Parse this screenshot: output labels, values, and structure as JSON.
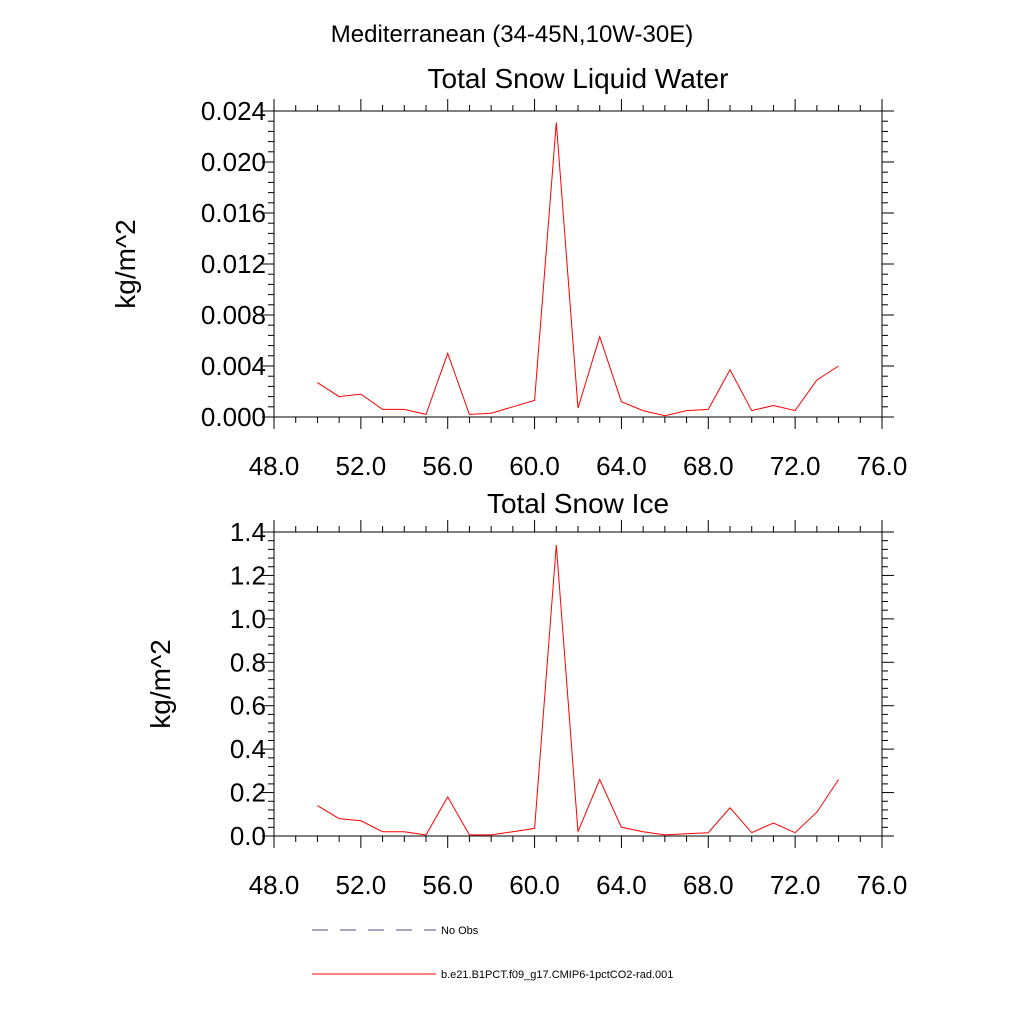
{
  "page": {
    "main_title": "Mediterranean (34-45N,10W-30E)"
  },
  "legend": {
    "items": [
      {
        "label": "No Obs",
        "color": "#4d4d80",
        "style": "dashed"
      },
      {
        "label": "b.e21.B1PCT.f09_g17.CMIP6-1pctCO2-rad.001",
        "color": "#ff0000",
        "style": "solid"
      }
    ]
  },
  "chart_data": [
    {
      "type": "line",
      "title": "Total Snow Liquid Water",
      "xlabel": "",
      "ylabel": "kg/m^2",
      "xlim": [
        48,
        76
      ],
      "ylim": [
        0,
        0.024
      ],
      "x_ticks": [
        48,
        52,
        56,
        60,
        64,
        68,
        72,
        76
      ],
      "x_tick_labels": [
        "48.0",
        "52.0",
        "56.0",
        "60.0",
        "64.0",
        "68.0",
        "72.0",
        "76.0"
      ],
      "y_ticks": [
        0,
        0.004,
        0.008,
        0.012,
        0.016,
        0.02,
        0.024
      ],
      "y_tick_labels": [
        "0.000",
        "0.004",
        "0.008",
        "0.012",
        "0.016",
        "0.020",
        "0.024"
      ],
      "grid": false,
      "series": [
        {
          "name": "b.e21.B1PCT.f09_g17.CMIP6-1pctCO2-rad.001",
          "color": "#ff0000",
          "x": [
            50,
            51,
            52,
            53,
            54,
            55,
            56,
            57,
            58,
            59,
            60,
            61,
            62,
            63,
            64,
            65,
            66,
            67,
            68,
            69,
            70,
            71,
            72,
            73,
            74
          ],
          "y": [
            0.0027,
            0.0016,
            0.0018,
            0.0006,
            0.0006,
            0.0002,
            0.005,
            0.0002,
            0.0003,
            0.0008,
            0.0013,
            0.0231,
            0.0007,
            0.0063,
            0.0012,
            0.0005,
            0.0001,
            0.0005,
            0.0006,
            0.0037,
            0.0005,
            0.0009,
            0.0005,
            0.0029,
            0.004
          ]
        }
      ]
    },
    {
      "type": "line",
      "title": "Total Snow Ice",
      "xlabel": "",
      "ylabel": "kg/m^2",
      "xlim": [
        48,
        76
      ],
      "ylim": [
        0,
        1.4
      ],
      "x_ticks": [
        48,
        52,
        56,
        60,
        64,
        68,
        72,
        76
      ],
      "x_tick_labels": [
        "48.0",
        "52.0",
        "56.0",
        "60.0",
        "64.0",
        "68.0",
        "72.0",
        "76.0"
      ],
      "y_ticks": [
        0,
        0.2,
        0.4,
        0.6,
        0.8,
        1.0,
        1.2,
        1.4
      ],
      "y_tick_labels": [
        "0.0",
        "0.2",
        "0.4",
        "0.6",
        "0.8",
        "1.0",
        "1.2",
        "1.4"
      ],
      "grid": false,
      "series": [
        {
          "name": "b.e21.B1PCT.f09_g17.CMIP6-1pctCO2-rad.001",
          "color": "#ff0000",
          "x": [
            50,
            51,
            52,
            53,
            54,
            55,
            56,
            57,
            58,
            59,
            60,
            61,
            62,
            63,
            64,
            65,
            66,
            67,
            68,
            69,
            70,
            71,
            72,
            73,
            74
          ],
          "y": [
            0.14,
            0.08,
            0.07,
            0.02,
            0.02,
            0.005,
            0.18,
            0.005,
            0.005,
            0.02,
            0.035,
            1.34,
            0.02,
            0.26,
            0.04,
            0.02,
            0.005,
            0.01,
            0.015,
            0.13,
            0.015,
            0.06,
            0.015,
            0.11,
            0.26
          ]
        }
      ]
    }
  ]
}
